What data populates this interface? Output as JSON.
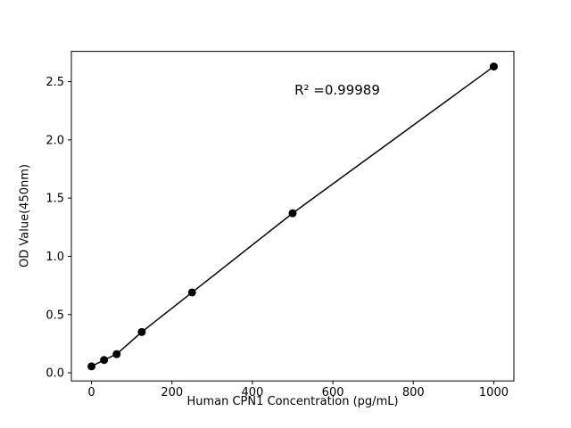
{
  "chart_data": {
    "type": "scatter",
    "title": "",
    "xlabel": "Human CPN1 Concentration (pg/mL)",
    "ylabel": "OD Value(450nm)",
    "x": [
      0,
      31.25,
      62.5,
      125,
      250,
      500,
      1000
    ],
    "y": [
      0.055,
      0.11,
      0.16,
      0.35,
      0.69,
      1.37,
      2.63
    ],
    "fit_line": true,
    "xticks": [
      0,
      200,
      400,
      600,
      800,
      1000
    ],
    "xtick_labels": [
      "0",
      "200",
      "400",
      "600",
      "800",
      "1000"
    ],
    "yticks": [
      0.0,
      0.5,
      1.0,
      1.5,
      2.0,
      2.5
    ],
    "ytick_labels": [
      "0.0",
      "0.5",
      "1.0",
      "1.5",
      "2.0",
      "2.5"
    ],
    "xlim": [
      -50,
      1050
    ],
    "ylim": [
      -0.07,
      2.76
    ],
    "annotation": {
      "text": "R² =0.99989",
      "x": 610,
      "y": 2.42
    },
    "grid": false,
    "legend": "none",
    "marker_color": "#000000",
    "line_color": "#000000",
    "axes_color": "#000000",
    "background": "#ffffff"
  }
}
